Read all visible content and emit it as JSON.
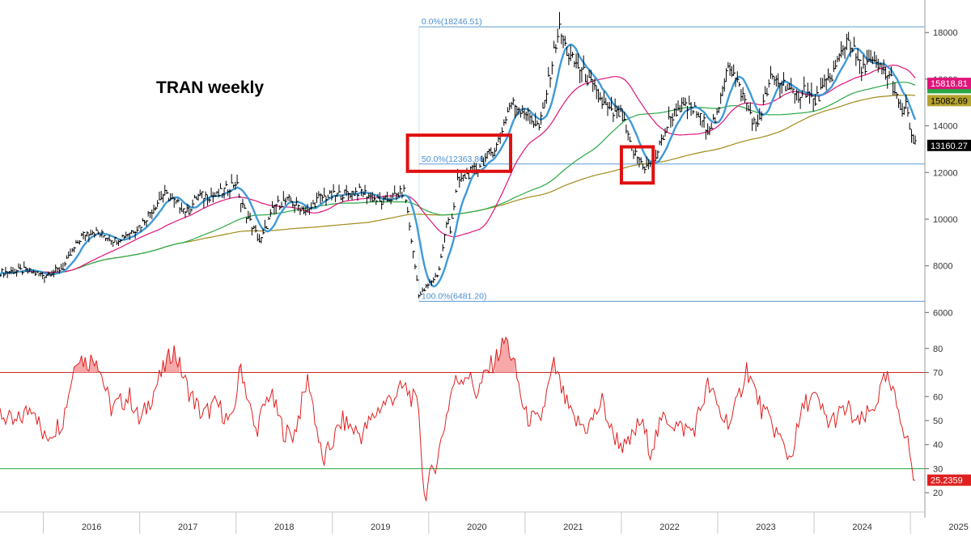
{
  "chart_data": [
    {
      "panel": "price",
      "type": "line",
      "title": "TRAN weekly",
      "x": [
        "2016",
        "2017",
        "2018",
        "2019",
        "2020",
        "2021",
        "2022",
        "2023",
        "2024",
        "2025"
      ],
      "x_tick_labels": [
        "2016",
        "2017",
        "2018",
        "2019",
        "2020",
        "2021",
        "2022",
        "2023",
        "2024",
        "2025"
      ],
      "y_tick_labels": [
        "6000",
        "8000",
        "10000",
        "12000",
        "14000",
        "16000",
        "18000"
      ],
      "ylim": [
        5700,
        18700
      ],
      "log_scale": false,
      "grid": false,
      "series": [
        {
          "name": "",
          "style": "ohlc-bars",
          "color": "#000000",
          "x": [
            2015.5,
            2015.8,
            2016.0,
            2016.2,
            2016.4,
            2016.5,
            2016.75,
            2017.0,
            2017.25,
            2017.5,
            2017.6,
            2017.8,
            2018.0,
            2018.05,
            2018.25,
            2018.4,
            2018.55,
            2018.75,
            2018.85,
            2019.0,
            2019.3,
            2019.5,
            2019.75,
            2019.9,
            2020.1,
            2020.2,
            2020.22,
            2020.3,
            2020.5,
            2020.7,
            2020.85,
            2021.0,
            2021.15,
            2021.35,
            2021.45,
            2021.6,
            2021.8,
            2021.9,
            2022.0,
            2022.1,
            2022.25,
            2022.35,
            2022.5,
            2022.6,
            2022.75,
            2022.9,
            2023.0,
            2023.1,
            2023.3,
            2023.4,
            2023.55,
            2023.7,
            2023.8,
            2023.9,
            2024.0,
            2024.2,
            2024.35,
            2024.5,
            2024.55,
            2024.7,
            2024.8,
            2024.9,
            2024.95,
            2025.03,
            2025.05
          ],
          "values": [
            7700,
            7800,
            7600,
            7900,
            9300,
            9500,
            9100,
            9700,
            11100,
            10300,
            11000,
            11000,
            11600,
            10700,
            9000,
            10600,
            10800,
            10300,
            10900,
            11000,
            11200,
            10700,
            11200,
            6700,
            7700,
            10100,
            9500,
            11600,
            12200,
            13100,
            15000,
            14600,
            13900,
            18200,
            17000,
            16300,
            15000,
            14500,
            14500,
            13000,
            12200,
            12600,
            14300,
            14800,
            14700,
            13900,
            14400,
            16800,
            14900,
            13900,
            16000,
            15800,
            15200,
            15600,
            15000,
            16300,
            17800,
            16300,
            16800,
            16400,
            16000,
            14500,
            14900,
            13200,
            13160
          ]
        },
        {
          "name": "",
          "style": "ma",
          "color": "#3f9ad7",
          "values": "fast moving average, last 15818.81"
        },
        {
          "name": "",
          "style": "ma",
          "color": "#e0147a",
          "last": 15818.81
        },
        {
          "name": "",
          "style": "ma",
          "color": "#29a845",
          "last": 15600
        },
        {
          "name": "",
          "style": "ma",
          "color": "#a18b1a",
          "last": 15082.69
        }
      ],
      "annotations": [
        {
          "label": "0.0%(18246.51)",
          "value": 18246.51
        },
        {
          "label": "50.0%(12363.86)",
          "value": 12363.86
        },
        {
          "label": "100.0%(6481.20)",
          "value": 6481.2
        }
      ],
      "last_value_tags": [
        {
          "label": "15818.81",
          "color": "#e0147a"
        },
        {
          "label": "15082.69",
          "color": "#b5a32e"
        },
        {
          "label": "13160.27",
          "color": "#000000"
        }
      ]
    },
    {
      "panel": "rsi",
      "type": "line",
      "x_tick_labels": [
        "2016",
        "2017",
        "2018",
        "2019",
        "2020",
        "2021",
        "2022",
        "2023",
        "2024",
        "2025"
      ],
      "y_tick_labels": [
        "20",
        "30",
        "40",
        "50",
        "60",
        "70",
        "80"
      ],
      "ylim": [
        13,
        87
      ],
      "reference_lines": [
        70,
        30
      ],
      "series": [
        {
          "name": "",
          "color": "#e02020",
          "x": [
            2015.5,
            2015.7,
            2015.9,
            2016.0,
            2016.2,
            2016.35,
            2016.45,
            2016.55,
            2016.7,
            2016.9,
            2017.0,
            2017.2,
            2017.35,
            2017.5,
            2017.65,
            2017.8,
            2017.95,
            2018.05,
            2018.2,
            2018.35,
            2018.5,
            2018.6,
            2018.75,
            2018.9,
            2019.1,
            2019.3,
            2019.5,
            2019.6,
            2019.75,
            2019.9,
            2019.95,
            2020.1,
            2020.25,
            2020.4,
            2020.5,
            2020.6,
            2020.7,
            2020.8,
            2020.9,
            2021.0,
            2021.15,
            2021.3,
            2021.4,
            2021.5,
            2021.65,
            2021.8,
            2021.9,
            2022.05,
            2022.2,
            2022.3,
            2022.45,
            2022.6,
            2022.75,
            2022.9,
            2023.05,
            2023.15,
            2023.3,
            2023.45,
            2023.6,
            2023.75,
            2023.9,
            2024.0,
            2024.15,
            2024.35,
            2024.45,
            2024.6,
            2024.75,
            2024.9,
            2025.0,
            2025.03
          ],
          "values": [
            55,
            48,
            57,
            42,
            50,
            78,
            74,
            77,
            55,
            60,
            49,
            67,
            80,
            63,
            52,
            57,
            48,
            73,
            45,
            62,
            45,
            44,
            68,
            32,
            50,
            44,
            56,
            59,
            64,
            55,
            18,
            36,
            65,
            70,
            61,
            70,
            76,
            84,
            71,
            52,
            49,
            73,
            60,
            50,
            47,
            58,
            45,
            38,
            50,
            38,
            52,
            47,
            46,
            65,
            51,
            50,
            72,
            55,
            46,
            34,
            57,
            60,
            49,
            55,
            48,
            54,
            68,
            52,
            36,
            25.2359
          ]
        }
      ],
      "last_value_tags": [
        {
          "label": "25.2359",
          "color": "#e02020"
        }
      ]
    }
  ]
}
